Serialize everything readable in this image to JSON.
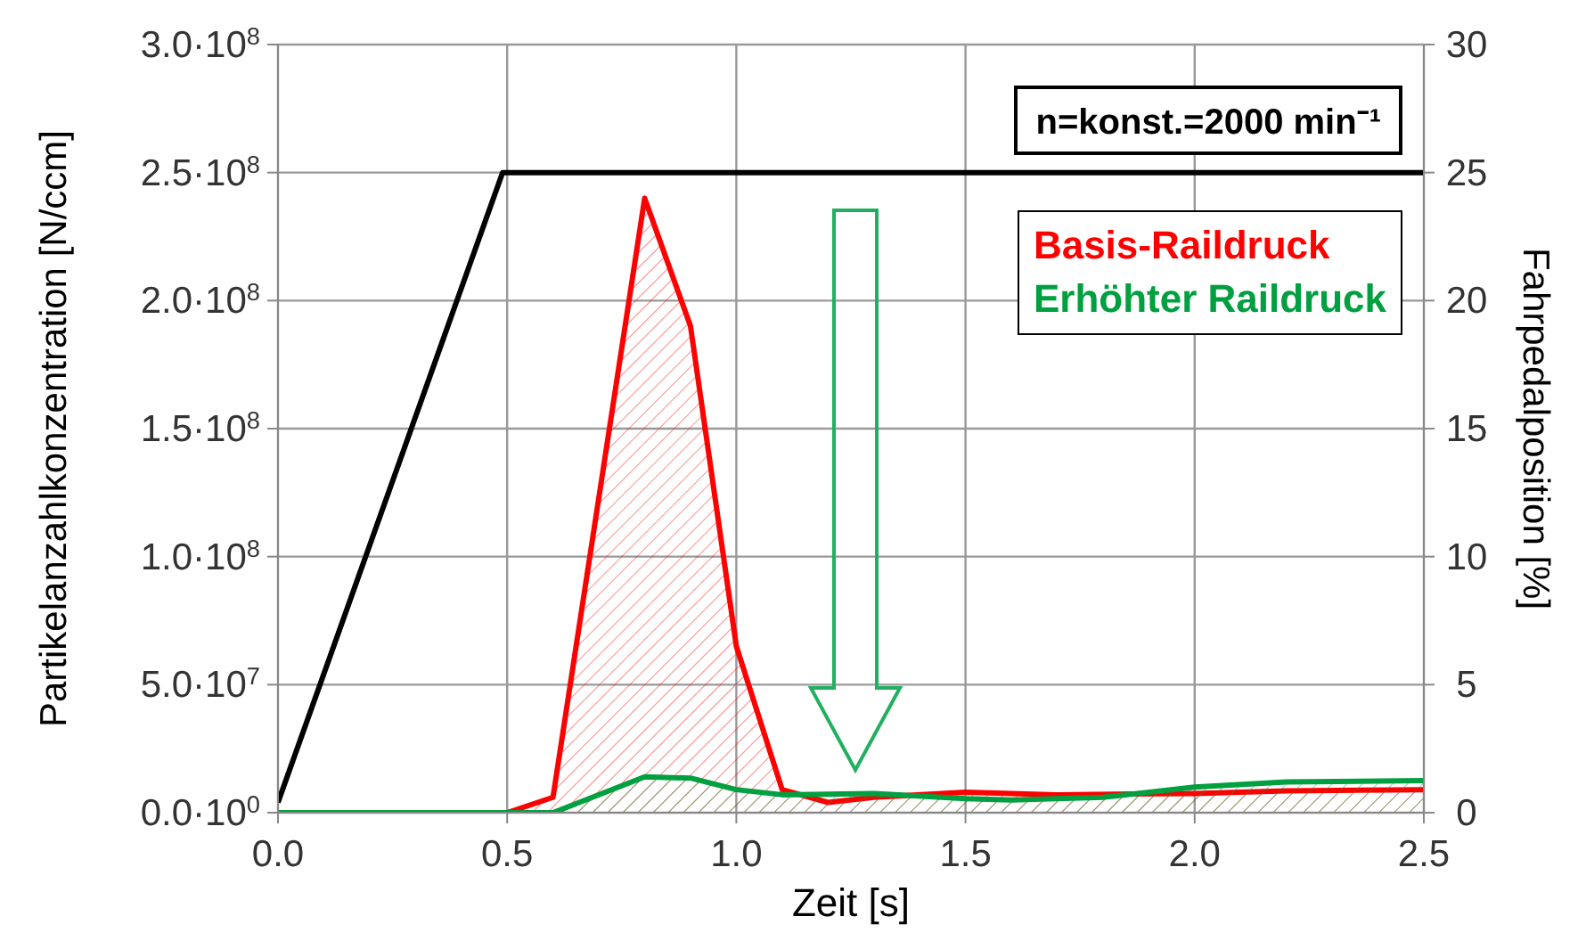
{
  "chart_data": {
    "type": "line",
    "xlabel": "Zeit  [s]",
    "ylabel": "Partikelanzahlkonzentration [N/ccm]",
    "y2label": "Fahrpedalposition [%]",
    "xlim": [
      0,
      2.5
    ],
    "xticks": [
      {
        "value": 0,
        "label": "0.0"
      },
      {
        "value": 0.5,
        "label": "0.5"
      },
      {
        "value": 1,
        "label": "1.0"
      },
      {
        "value": 1.5,
        "label": "1.5"
      },
      {
        "value": 2,
        "label": "2.0"
      },
      {
        "value": 2.5,
        "label": "2.5"
      }
    ],
    "ylim": [
      0,
      300000000
    ],
    "yticks": [
      {
        "value": 0,
        "label": "0.0·10$^{0}$"
      },
      {
        "value": 50000000,
        "label": "5.0·10$^{7}$"
      },
      {
        "value": 100000000,
        "label": "1.0·10$^{8}$"
      },
      {
        "value": 150000000,
        "label": "1.5·10$^{8}$"
      },
      {
        "value": 200000000,
        "label": "2.0·10$^{8}$"
      },
      {
        "value": 250000000,
        "label": "2.5·10$^{8}$"
      },
      {
        "value": 300000000,
        "label": "3.0·10$^{8}$"
      }
    ],
    "y2lim": [
      0,
      30
    ],
    "y2ticks": [
      0,
      5,
      10,
      15,
      20,
      25,
      30
    ],
    "grid": true,
    "legend": "top right",
    "annotations": [
      "n=konst.=2000 min⁻¹"
    ],
    "series": [
      {
        "type": "area",
        "name": "Basis-Raildruck",
        "color": "#ff0000",
        "x": [
          0,
          0.5,
          0.6,
          0.8,
          0.9,
          1.0,
          1.1,
          1.2,
          1.3,
          1.5,
          1.7,
          2.0,
          2.2,
          2.5
        ],
        "values": [
          0,
          0,
          6000000,
          240000000,
          190000000,
          65000000,
          9000000,
          4000000,
          6000000,
          8000000,
          7000000,
          7500000,
          8500000,
          9000000
        ]
      },
      {
        "type": "area",
        "name": "Erhöhter Raildruck",
        "color": "#00a040",
        "x": [
          0,
          0.5,
          0.6,
          0.8,
          0.9,
          1.0,
          1.1,
          1.3,
          1.5,
          1.6,
          1.8,
          2.0,
          2.2,
          2.5
        ],
        "values": [
          0,
          0,
          0,
          14000000,
          13500000,
          9000000,
          7000000,
          7500000,
          5500000,
          5000000,
          6000000,
          10000000,
          12000000,
          12500000
        ]
      },
      {
        "color": "#000000",
        "axis": "y2",
        "x": [
          0,
          0.49,
          2.5
        ],
        "values": [
          0.4,
          25,
          25
        ]
      }
    ]
  }
}
